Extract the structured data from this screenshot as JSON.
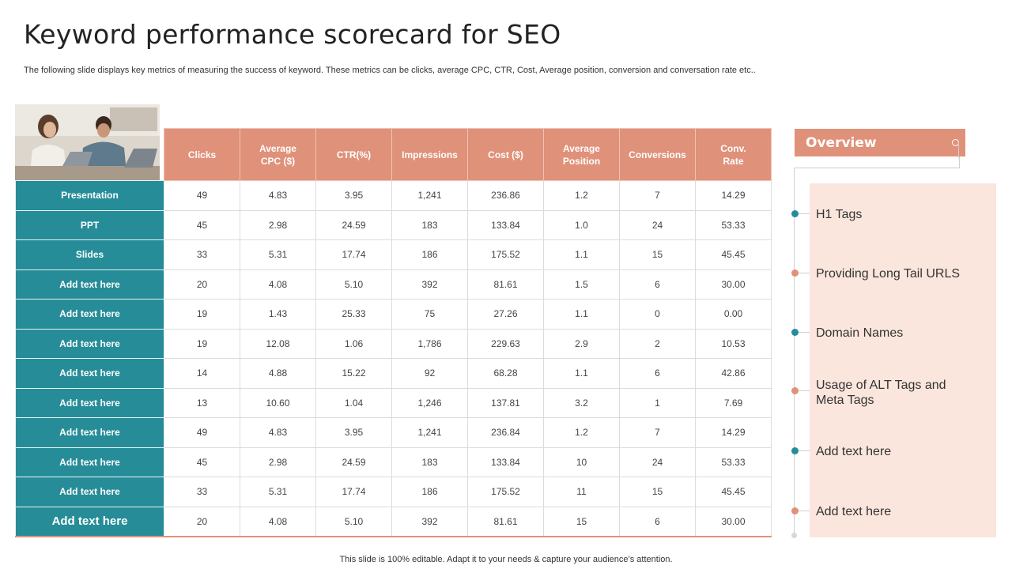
{
  "title": "Keyword performance scorecard for SEO",
  "subtitle": "The following slide displays key metrics of measuring the success of keyword. These metrics can be clicks, average CPC, CTR, Cost, Average position, conversion and conversation rate etc..",
  "table": {
    "headers": [
      "Clicks",
      "Average\nCPC ($)",
      "CTR(%)",
      "Impressions",
      "Cost ($)",
      "Average\nPosition",
      "Conversions",
      "Conv.\nRate"
    ],
    "rows": [
      {
        "label": "Presentation",
        "values": [
          "49",
          "4.83",
          "3.95",
          "1,241",
          "236.86",
          "1.2",
          "7",
          "14.29"
        ]
      },
      {
        "label": "PPT",
        "values": [
          "45",
          "2.98",
          "24.59",
          "183",
          "133.84",
          "1.0",
          "24",
          "53.33"
        ]
      },
      {
        "label": "Slides",
        "values": [
          "33",
          "5.31",
          "17.74",
          "186",
          "175.52",
          "1.1",
          "15",
          "45.45"
        ]
      },
      {
        "label": "Add text here",
        "values": [
          "20",
          "4.08",
          "5.10",
          "392",
          "81.61",
          "1.5",
          "6",
          "30.00"
        ]
      },
      {
        "label": "Add text here",
        "values": [
          "19",
          "1.43",
          "25.33",
          "75",
          "27.26",
          "1.1",
          "0",
          "0.00"
        ]
      },
      {
        "label": "Add text here",
        "values": [
          "19",
          "12.08",
          "1.06",
          "1,786",
          "229.63",
          "2.9",
          "2",
          "10.53"
        ]
      },
      {
        "label": "Add text here",
        "values": [
          "14",
          "4.88",
          "15.22",
          "92",
          "68.28",
          "1.1",
          "6",
          "42.86"
        ]
      },
      {
        "label": "Add text here",
        "values": [
          "13",
          "10.60",
          "1.04",
          "1,246",
          "137.81",
          "3.2",
          "1",
          "7.69"
        ]
      },
      {
        "label": "Add text here",
        "values": [
          "49",
          "4.83",
          "3.95",
          "1,241",
          "236.84",
          "1.2",
          "7",
          "14.29"
        ]
      },
      {
        "label": "Add text here",
        "values": [
          "45",
          "2.98",
          "24.59",
          "183",
          "133.84",
          "10",
          "24",
          "53.33"
        ]
      },
      {
        "label": "Add text here",
        "values": [
          "33",
          "5.31",
          "17.74",
          "186",
          "175.52",
          "11",
          "15",
          "45.45"
        ]
      },
      {
        "label": "Add text here",
        "values": [
          "20",
          "4.08",
          "5.10",
          "392",
          "81.61",
          "15",
          "6",
          "30.00"
        ]
      }
    ]
  },
  "overview": {
    "title": "Overview",
    "items": [
      {
        "text": "H1 Tags",
        "dot": "teal"
      },
      {
        "text": "Providing Long Tail URLS",
        "dot": "salmon"
      },
      {
        "text": "Domain Names",
        "dot": "teal"
      },
      {
        "text": "Usage of ALT Tags and Meta Tags",
        "dot": "salmon"
      },
      {
        "text": "Add text here",
        "dot": "teal"
      },
      {
        "text": "Add text here",
        "dot": "salmon"
      }
    ]
  },
  "footer": "This slide is 100% editable. Adapt it to your needs & capture your audience’s attention.",
  "colors": {
    "header_salmon": "#e0917a",
    "row_teal": "#268d98",
    "panel_peach": "#fbe6dd"
  }
}
